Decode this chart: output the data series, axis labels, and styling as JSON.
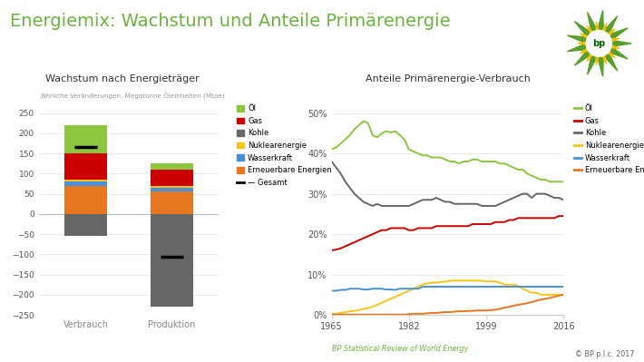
{
  "title": "Energiemix: Wachstum und Anteile Primärenergie",
  "title_color": "#6db33f",
  "bg_color": "#ffffff",
  "left_title": "Wachstum nach Energieträger",
  "left_subtitle": "Jährliche Veränderungen, Megatonne Öleinheiten (Mtoe)",
  "right_title": "Anteile Primärenergie-Verbrauch",
  "footer_left": "BP Statistical Review of World Energy",
  "footer_right": "© BP p.l.c. 2017",
  "bar_categories": [
    "Verbrauch",
    "Produktion"
  ],
  "bar_colors": {
    "Öl": "#8dc63f",
    "Gas": "#cc0000",
    "Kohle": "#666666",
    "Nuklearenergie": "#f5c518",
    "Wasserkraft": "#4a90d9",
    "Erneuerbare Energien": "#e87722"
  },
  "bar_positive_verbrauch": {
    "Öl": 70,
    "Gas": 65,
    "Nuklearenergie": 5,
    "Wasserkraft": 10,
    "Erneuerbare Energien": 70
  },
  "bar_positive_produktion": {
    "Öl": 15,
    "Gas": 40,
    "Nuklearenergie": 5,
    "Wasserkraft": 10,
    "Erneuerbare Energien": 55
  },
  "bar_negative_verbrauch": {
    "Kohle": -55
  },
  "bar_negative_produktion": {
    "Kohle": -230
  },
  "bar_net": {
    "Verbrauch": 165,
    "Produktion": -105
  },
  "ylim_bar": [
    -250,
    270
  ],
  "yticks_bar": [
    -250,
    -200,
    -150,
    -100,
    -50,
    0,
    50,
    100,
    150,
    200,
    250
  ],
  "pos_stack_order": [
    "Erneuerbare Energien",
    "Wasserkraft",
    "Nuklearenergie",
    "Gas",
    "Öl"
  ],
  "neg_stack_order": [
    "Kohle"
  ],
  "line_years": [
    1965,
    1966,
    1967,
    1968,
    1969,
    1970,
    1971,
    1972,
    1973,
    1974,
    1975,
    1976,
    1977,
    1978,
    1979,
    1980,
    1981,
    1982,
    1983,
    1984,
    1985,
    1986,
    1987,
    1988,
    1989,
    1990,
    1991,
    1992,
    1993,
    1994,
    1995,
    1996,
    1997,
    1998,
    1999,
    2000,
    2001,
    2002,
    2003,
    2004,
    2005,
    2006,
    2007,
    2008,
    2009,
    2010,
    2011,
    2012,
    2013,
    2014,
    2015,
    2016
  ],
  "line_data": {
    "Öl": [
      41.0,
      41.5,
      42.5,
      43.5,
      44.5,
      46.0,
      47.0,
      48.0,
      47.5,
      44.5,
      44.0,
      45.0,
      45.5,
      45.2,
      45.5,
      44.5,
      43.5,
      41.0,
      40.5,
      40.0,
      39.5,
      39.5,
      39.0,
      39.0,
      39.0,
      38.5,
      38.0,
      38.0,
      37.5,
      38.0,
      38.0,
      38.5,
      38.5,
      38.0,
      38.0,
      38.0,
      38.0,
      37.5,
      37.5,
      37.0,
      36.5,
      36.0,
      36.0,
      35.0,
      34.5,
      34.0,
      33.5,
      33.5,
      33.0,
      33.0,
      33.0,
      33.0
    ],
    "Gas": [
      16.0,
      16.2,
      16.5,
      17.0,
      17.5,
      18.0,
      18.5,
      19.0,
      19.5,
      20.0,
      20.5,
      21.0,
      21.0,
      21.5,
      21.5,
      21.5,
      21.5,
      21.0,
      21.0,
      21.5,
      21.5,
      21.5,
      21.5,
      22.0,
      22.0,
      22.0,
      22.0,
      22.0,
      22.0,
      22.0,
      22.0,
      22.5,
      22.5,
      22.5,
      22.5,
      22.5,
      23.0,
      23.0,
      23.0,
      23.5,
      23.5,
      24.0,
      24.0,
      24.0,
      24.0,
      24.0,
      24.0,
      24.0,
      24.0,
      24.0,
      24.5,
      24.5
    ],
    "Kohle": [
      38.0,
      36.5,
      35.0,
      33.0,
      31.5,
      30.0,
      29.0,
      28.0,
      27.5,
      27.0,
      27.5,
      27.0,
      27.0,
      27.0,
      27.0,
      27.0,
      27.0,
      27.0,
      27.5,
      28.0,
      28.5,
      28.5,
      28.5,
      29.0,
      28.5,
      28.0,
      28.0,
      27.5,
      27.5,
      27.5,
      27.5,
      27.5,
      27.5,
      27.0,
      27.0,
      27.0,
      27.0,
      27.5,
      28.0,
      28.5,
      29.0,
      29.5,
      30.0,
      30.0,
      29.0,
      30.0,
      30.0,
      30.0,
      29.5,
      29.0,
      29.0,
      28.5
    ],
    "Nuklearenergie": [
      0.3,
      0.3,
      0.5,
      0.7,
      0.9,
      1.0,
      1.2,
      1.5,
      1.7,
      2.0,
      2.5,
      3.0,
      3.5,
      4.0,
      4.5,
      5.0,
      5.5,
      6.0,
      6.5,
      7.0,
      7.5,
      7.8,
      8.0,
      8.0,
      8.2,
      8.2,
      8.5,
      8.5,
      8.5,
      8.5,
      8.5,
      8.5,
      8.5,
      8.5,
      8.3,
      8.3,
      8.3,
      8.0,
      7.5,
      7.5,
      7.5,
      7.2,
      6.5,
      6.0,
      5.5,
      5.5,
      5.0,
      5.0,
      5.0,
      5.0,
      5.0,
      5.0
    ],
    "Wasserkraft": [
      6.0,
      6.0,
      6.2,
      6.2,
      6.5,
      6.5,
      6.5,
      6.3,
      6.3,
      6.5,
      6.5,
      6.5,
      6.3,
      6.3,
      6.2,
      6.5,
      6.5,
      6.5,
      6.5,
      6.5,
      7.0,
      7.0,
      7.0,
      7.0,
      7.0,
      7.0,
      7.0,
      7.0,
      7.0,
      7.0,
      7.0,
      7.0,
      7.0,
      7.0,
      7.0,
      7.0,
      7.0,
      7.0,
      7.0,
      7.0,
      7.0,
      7.0,
      7.0,
      7.0,
      7.0,
      7.0,
      7.0,
      7.0,
      7.0,
      7.0,
      7.0,
      7.0
    ],
    "Erneuerbare Energien": [
      0.1,
      0.1,
      0.1,
      0.1,
      0.1,
      0.1,
      0.1,
      0.1,
      0.1,
      0.1,
      0.1,
      0.1,
      0.1,
      0.1,
      0.1,
      0.1,
      0.1,
      0.2,
      0.3,
      0.3,
      0.3,
      0.4,
      0.5,
      0.5,
      0.6,
      0.7,
      0.7,
      0.8,
      0.9,
      0.9,
      1.0,
      1.0,
      1.1,
      1.1,
      1.1,
      1.2,
      1.3,
      1.5,
      1.8,
      2.0,
      2.3,
      2.5,
      2.7,
      2.9,
      3.2,
      3.5,
      3.8,
      4.0,
      4.2,
      4.5,
      4.8,
      5.0
    ]
  },
  "line_colors": {
    "Öl": "#8dc63f",
    "Gas": "#cc0000",
    "Kohle": "#666666",
    "Nuklearenergie": "#f5c518",
    "Wasserkraft": "#4a90d9",
    "Erneuerbare Energien": "#e87722"
  },
  "line_xlim": [
    1965,
    2016
  ],
  "line_xticks": [
    1965,
    1982,
    1999,
    2016
  ],
  "line_ylim": [
    0,
    52
  ],
  "line_yticks": [
    0,
    10,
    20,
    30,
    40,
    50
  ],
  "line_ytick_labels": [
    "0%",
    "10%",
    "20%",
    "30%",
    "40%",
    "50%"
  ],
  "legend_order": [
    "Öl",
    "Gas",
    "Kohle",
    "Nuklearenergie",
    "Wasserkraft",
    "Erneuerbare Energien"
  ]
}
